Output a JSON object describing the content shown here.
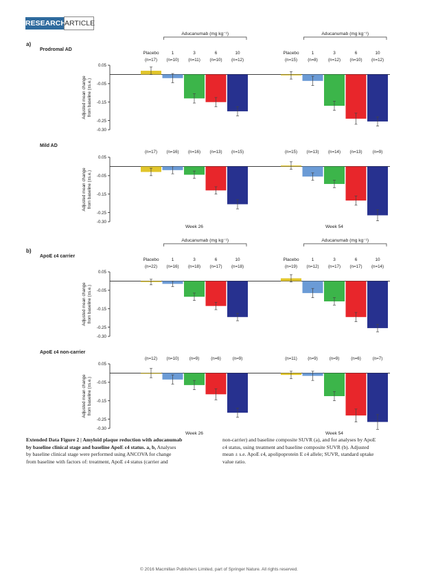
{
  "header": {
    "research": "RESEARCH",
    "article": "ARTICLE"
  },
  "chart_data": {
    "type": "bar",
    "ylabel_lines": [
      "Adjusted mean change",
      "from baseline (±s.e.)"
    ],
    "ylim": [
      -0.3,
      0.05
    ],
    "yticks": [
      "0.05",
      "-0.05",
      "-0.15",
      "-0.25",
      "-0.30"
    ],
    "categories": [
      "Placebo",
      "1",
      "3",
      "6",
      "10"
    ],
    "group_label": "Aducanumab (mg kg⁻¹)",
    "colors": [
      "#e1c52b",
      "#6b9bd6",
      "#3cb54a",
      "#e8262b",
      "#27318f"
    ],
    "sections": [
      {
        "label": "a)",
        "panels": [
          {
            "title": "Prodromal AD",
            "show_categories": true,
            "week26": {
              "n": [
                "(n=17)",
                "(n=10)",
                "(n=11)",
                "(n=10)",
                "(n=12)"
              ],
              "values": [
                0.02,
                -0.02,
                -0.13,
                -0.15,
                -0.2
              ],
              "err": [
                0.02,
                0.025,
                0.025,
                0.025,
                0.025
              ]
            },
            "week54": {
              "n": [
                "(n=15)",
                "(n=8)",
                "(n=12)",
                "(n=10)",
                "(n=12)"
              ],
              "values": [
                -0.005,
                -0.035,
                -0.17,
                -0.24,
                -0.255
              ],
              "err": [
                0.02,
                0.025,
                0.025,
                0.03,
                0.025
              ]
            }
          },
          {
            "title": "Mild AD",
            "show_categories": false,
            "week26": {
              "n": [
                "(n=17)",
                "(n=16)",
                "(n=16)",
                "(n=13)",
                "(n=15)"
              ],
              "values": [
                -0.03,
                -0.02,
                -0.045,
                -0.13,
                -0.205
              ],
              "err": [
                0.02,
                0.02,
                0.02,
                0.02,
                0.025
              ]
            },
            "week54": {
              "n": [
                "(n=15)",
                "(n=13)",
                "(n=14)",
                "(n=13)",
                "(n=9)"
              ],
              "values": [
                0.005,
                -0.055,
                -0.095,
                -0.185,
                -0.265
              ],
              "err": [
                0.02,
                0.02,
                0.02,
                0.025,
                0.03
              ]
            }
          }
        ],
        "weeks": [
          "Week 26",
          "Week 54"
        ]
      },
      {
        "label": "b)",
        "panels": [
          {
            "title": "ApoE ε4 carrier",
            "show_categories": true,
            "week26": {
              "n": [
                "(n=22)",
                "(n=16)",
                "(n=18)",
                "(n=17)",
                "(n=18)"
              ],
              "values": [
                -0.005,
                -0.015,
                -0.085,
                -0.135,
                -0.195
              ],
              "err": [
                0.015,
                0.015,
                0.02,
                0.02,
                0.02
              ]
            },
            "week54": {
              "n": [
                "(n=19)",
                "(n=12)",
                "(n=17)",
                "(n=17)",
                "(n=14)"
              ],
              "values": [
                0.015,
                -0.065,
                -0.11,
                -0.195,
                -0.255
              ],
              "err": [
                0.02,
                0.025,
                0.02,
                0.025,
                0.02
              ]
            }
          },
          {
            "title": "ApoE ε4 non-carrier",
            "show_categories": false,
            "week26": {
              "n": [
                "(n=12)",
                "(n=10)",
                "(n=9)",
                "(n=6)",
                "(n=9)"
              ],
              "values": [
                0.0,
                -0.035,
                -0.065,
                -0.115,
                -0.215
              ],
              "err": [
                0.025,
                0.025,
                0.025,
                0.03,
                0.025
              ]
            },
            "week54": {
              "n": [
                "(n=11)",
                "(n=9)",
                "(n=9)",
                "(n=6)",
                "(n=7)"
              ],
              "values": [
                -0.01,
                -0.015,
                -0.125,
                -0.23,
                -0.265
              ],
              "err": [
                0.02,
                0.025,
                0.025,
                0.035,
                0.04
              ]
            }
          }
        ],
        "weeks": [
          "Week 26",
          "Week 54"
        ]
      }
    ]
  },
  "caption": {
    "left_lines": [
      {
        "bold": "Extended Data Figure 2 | Amyloid plaque reduction with aducanumab",
        "text": ""
      },
      {
        "bold": "by baseline clinical stage and baseline ApoE ε4 status. a, b,",
        "text": " Analyses"
      },
      {
        "bold": "",
        "text": "by baseline clinical stage were performed using ANCOVA for change"
      },
      {
        "bold": "",
        "text": "from baseline with factors of: treatment, ApoE ε4 status (carrier and"
      }
    ],
    "right_lines": [
      {
        "bold": "",
        "text": "non-carrier) and baseline composite SUVR (a), and for analyses by ApoE"
      },
      {
        "bold": "",
        "text": "ε4 status, using treatment and baseline composite SUVR (b). Adjusted"
      },
      {
        "bold": "",
        "text": "mean ± s.e. ApoE ε4, apolipoprotein E ε4 allele; SUVR, standard uptake"
      },
      {
        "bold": "",
        "text": "value ratio."
      }
    ]
  },
  "footer": "© 2016 Macmillan Publishers Limited, part of Springer Nature. All rights reserved."
}
